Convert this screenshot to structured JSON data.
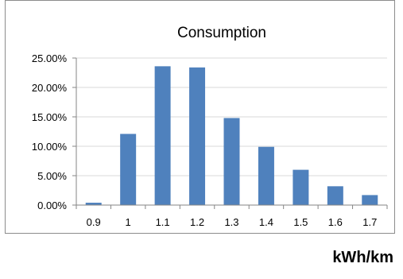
{
  "chart_data": {
    "type": "bar",
    "title": "Consumption",
    "categories": [
      "0.9",
      "1",
      "1.1",
      "1.2",
      "1.3",
      "1.4",
      "1.5",
      "1.6",
      "1.7"
    ],
    "values": [
      0.4,
      12.1,
      23.6,
      23.4,
      14.8,
      9.9,
      6.0,
      3.2,
      1.7
    ],
    "ylim": [
      0,
      25
    ],
    "yticks": [
      "0.00%",
      "5.00%",
      "10.00%",
      "15.00%",
      "20.00%",
      "25.00%"
    ],
    "ytick_values": [
      0,
      5,
      10,
      15,
      20,
      25
    ],
    "grid": true,
    "bar_color": "#4f81bd",
    "grid_color": "#d9d9d9"
  },
  "unit_label": "kWh/km"
}
